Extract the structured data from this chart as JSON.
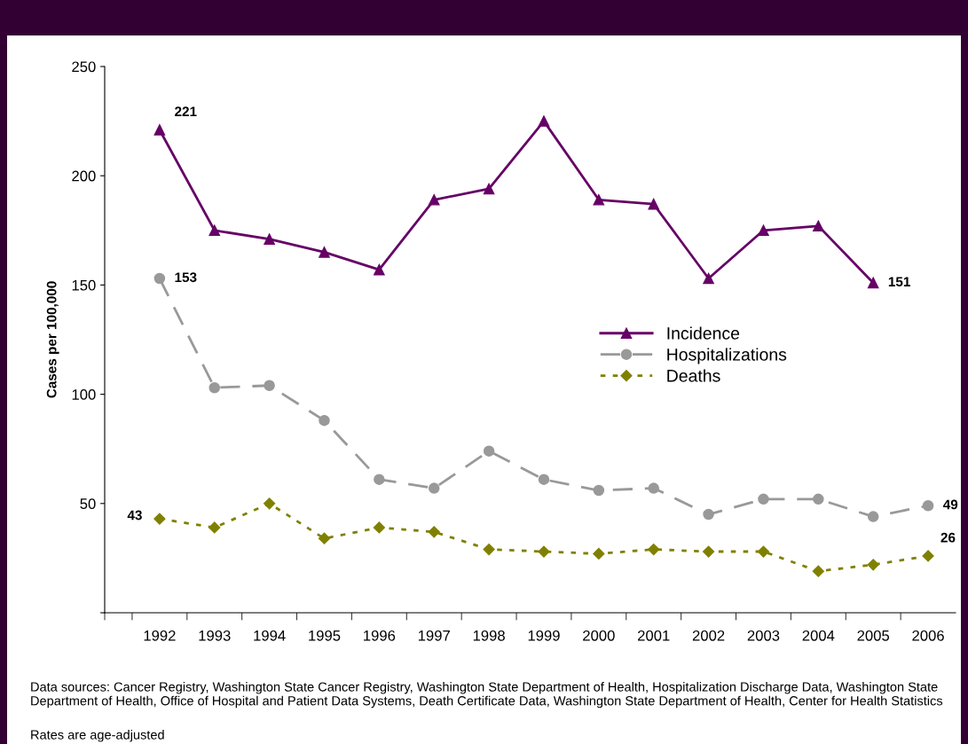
{
  "chart_data": {
    "type": "line",
    "ylabel": "Cases per 100,000",
    "categories": [
      null,
      "1992",
      "1993",
      "1994",
      "1995",
      "1996",
      "1997",
      "1998",
      "1999",
      "2000",
      "2001",
      "2002",
      "2003",
      "2004",
      "2005",
      "2006"
    ],
    "ylim": [
      0,
      250
    ],
    "yticks": [
      {
        "value": 0,
        "label": null
      },
      50,
      100,
      150,
      200,
      250
    ],
    "grid": false,
    "legend": "right",
    "series": [
      {
        "name": "Incidence",
        "color": "#660066",
        "marker": "triangle",
        "line_style": "solid",
        "values": [
          null,
          221,
          175,
          171,
          165,
          157,
          189,
          194,
          225,
          189,
          187,
          153,
          175,
          177,
          151,
          null
        ],
        "value_labels": [
          null,
          "221",
          null,
          null,
          null,
          null,
          null,
          null,
          null,
          null,
          null,
          null,
          null,
          null,
          "151",
          null
        ]
      },
      {
        "name": "Hospitalizations",
        "color": "#999999",
        "marker": "circle",
        "line_style": "dashed",
        "values": [
          null,
          153,
          103,
          104,
          88,
          61,
          57,
          74,
          61,
          56,
          57,
          45,
          52,
          52,
          44,
          49
        ],
        "value_labels": [
          null,
          "153",
          null,
          null,
          null,
          null,
          null,
          null,
          null,
          null,
          null,
          null,
          null,
          null,
          null,
          "49"
        ]
      },
      {
        "name": "Deaths",
        "color": "#808000",
        "marker": "diamond",
        "line_style": "dotted",
        "values": [
          null,
          43,
          39,
          50,
          34,
          39,
          37,
          29,
          28,
          27,
          29,
          28,
          28,
          19,
          22,
          26
        ],
        "value_labels": [
          null,
          "43",
          null,
          null,
          null,
          null,
          null,
          null,
          null,
          null,
          null,
          null,
          null,
          null,
          null,
          "26"
        ]
      }
    ],
    "annotations": [
      "Data sources: Cancer Registry, Washington State Cancer Registry, Washington State Department of Health, Hospitalization Discharge Data, Washington State Department of Health, Office of Hospital and Patient Data Systems, Death Certificate Data, Washington State Department of Health, Center for Health Statistics",
      "Rates are age-adjusted"
    ]
  }
}
